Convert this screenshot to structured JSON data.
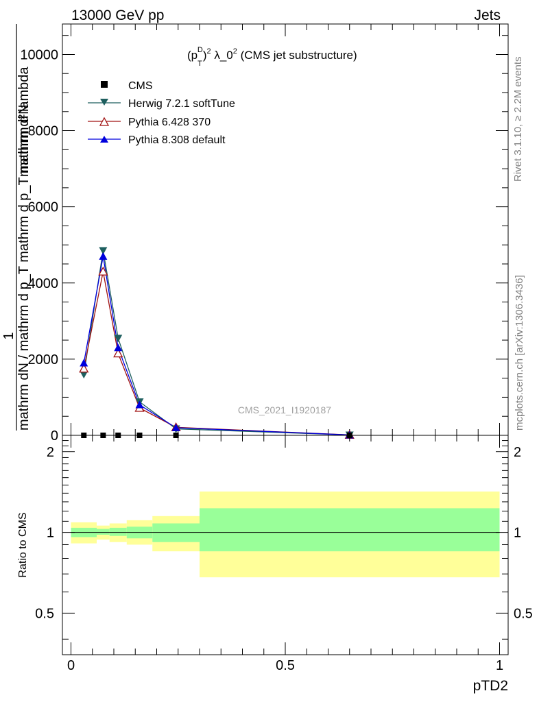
{
  "header": {
    "left": "13000 GeV pp",
    "right": "Jets"
  },
  "side_labels": {
    "rivet": "Rivet 3.1.10, ≥ 2.2M events",
    "mcplots": "mcplots.cern.ch [arXiv:1306.3436]"
  },
  "watermark": "CMS_2021_I1920187",
  "main_ylabel": {
    "numer": "1",
    "denom": "mathrm dN / mathrm d p_T mathrm d p_T mathrm d lambda",
    "top": "mathrm d²N"
  },
  "ratio_ylabel": "Ratio to CMS",
  "xlabel": "pTD2",
  "colors": {
    "herwig": "#1e5f5f",
    "pythia6": "#a01010",
    "pythia8": "#0000dd",
    "band_inner": "#99ff99",
    "band_outer": "#ffff99"
  },
  "chart_data": [
    {
      "type": "line",
      "panel": "main",
      "title": "(p_T^D)² λ_0² (CMS jet substructure)",
      "title_parts": {
        "p": "(p",
        "sub": "T",
        "sup": "D",
        "sup2": "2",
        "rest": " λ_0",
        "rest_sup": "2",
        "tail": " (CMS jet substructure)"
      },
      "xlim": [
        -0.02,
        1.02
      ],
      "ylim": [
        0,
        10800
      ],
      "yticks": [
        0,
        2000,
        4000,
        6000,
        8000,
        10000
      ],
      "ytick_labels": [
        "0",
        "2000",
        "4000",
        "6000",
        "8000",
        "10000"
      ],
      "legend": [
        "CMS",
        "Herwig 7.2.1 softTune",
        "Pythia 6.428 370",
        "Pythia 8.308 default"
      ],
      "x": [
        0.03,
        0.075,
        0.11,
        0.16,
        0.245,
        0.65
      ],
      "series": [
        {
          "name": "CMS",
          "marker": "square",
          "values": [
            0,
            0,
            0,
            0,
            0,
            0
          ]
        },
        {
          "name": "Herwig 7.2.1 softTune",
          "marker": "triangle-down",
          "values": [
            1600,
            4850,
            2550,
            880,
            170,
            10
          ]
        },
        {
          "name": "Pythia 6.428 370",
          "marker": "triangle-up-open",
          "values": [
            1750,
            4300,
            2150,
            720,
            210,
            12
          ]
        },
        {
          "name": "Pythia 8.308 default",
          "marker": "triangle-up",
          "values": [
            1900,
            4700,
            2300,
            800,
            200,
            10
          ]
        }
      ]
    },
    {
      "type": "area",
      "panel": "ratio",
      "ylabel": "Ratio to CMS",
      "xlabel": "pTD2",
      "xlim": [
        -0.02,
        1.02
      ],
      "ylim": [
        0.35,
        2.3
      ],
      "yticks": [
        0.5,
        1,
        2
      ],
      "ytick_labels": [
        "0.5",
        "1",
        "2"
      ],
      "xticks": [
        0,
        0.5,
        1
      ],
      "xtick_labels": [
        "0",
        "0.5",
        "1"
      ],
      "bins": [
        {
          "x0": 0.0,
          "x1": 0.06,
          "inner": [
            0.96,
            1.04
          ],
          "outer": [
            0.91,
            1.09
          ]
        },
        {
          "x0": 0.06,
          "x1": 0.09,
          "inner": [
            0.98,
            1.03
          ],
          "outer": [
            0.94,
            1.06
          ]
        },
        {
          "x0": 0.09,
          "x1": 0.13,
          "inner": [
            0.97,
            1.04
          ],
          "outer": [
            0.92,
            1.08
          ]
        },
        {
          "x0": 0.13,
          "x1": 0.19,
          "inner": [
            0.95,
            1.05
          ],
          "outer": [
            0.9,
            1.11
          ]
        },
        {
          "x0": 0.19,
          "x1": 0.3,
          "inner": [
            0.92,
            1.08
          ],
          "outer": [
            0.85,
            1.15
          ]
        },
        {
          "x0": 0.3,
          "x1": 1.0,
          "inner": [
            0.85,
            1.23
          ],
          "outer": [
            0.68,
            1.42
          ]
        }
      ]
    }
  ]
}
